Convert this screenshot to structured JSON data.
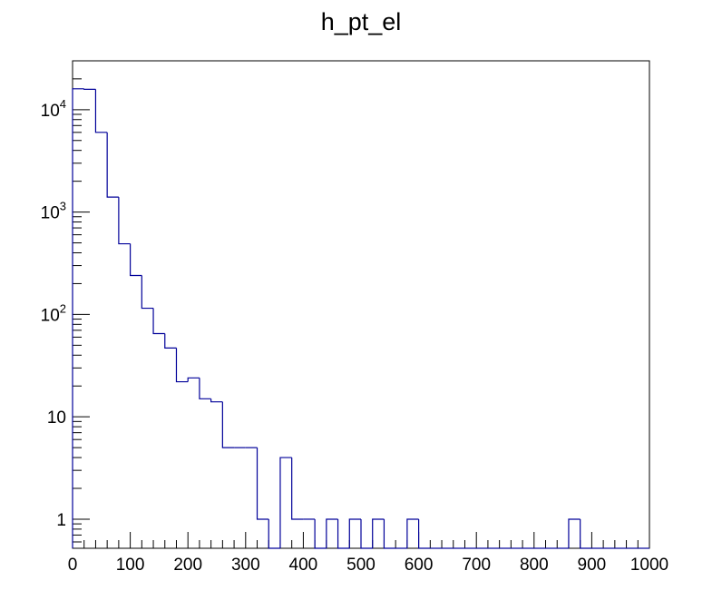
{
  "chart_data": {
    "type": "histogram",
    "title": "h_pt_el",
    "xlabel": "",
    "ylabel": "",
    "xlim": [
      0,
      1000
    ],
    "ylim": [
      0.52,
      30000
    ],
    "yscale": "log",
    "grid": false,
    "line_color": "#000099",
    "bin_edges": [
      0,
      20,
      40,
      60,
      80,
      100,
      120,
      140,
      160,
      180,
      200,
      220,
      240,
      260,
      280,
      300,
      320,
      340,
      360,
      380,
      400,
      420,
      440,
      460,
      480,
      500,
      520,
      540,
      560,
      580,
      600,
      620,
      640,
      660,
      680,
      700,
      720,
      740,
      760,
      780,
      800,
      820,
      840,
      860,
      880,
      900,
      920,
      940,
      960,
      980,
      1000
    ],
    "values": [
      16000,
      15800,
      6000,
      1400,
      490,
      240,
      115,
      65,
      47,
      22,
      24,
      15,
      14,
      5,
      5,
      5,
      1,
      0,
      4,
      1,
      1,
      0,
      1,
      0,
      1,
      0,
      1,
      0,
      0,
      1,
      0,
      0,
      0,
      0,
      0,
      0,
      0,
      0,
      0,
      0,
      0,
      0,
      0,
      1,
      0,
      0,
      0,
      0,
      0,
      0
    ],
    "x_ticks": [
      "0",
      "100",
      "200",
      "300",
      "400",
      "500",
      "600",
      "700",
      "800",
      "900",
      "1000"
    ],
    "y_ticks": [
      {
        "value": 1,
        "base": "1",
        "exp": ""
      },
      {
        "value": 10,
        "base": "10",
        "exp": ""
      },
      {
        "value": 100,
        "base": "10",
        "exp": "2"
      },
      {
        "value": 1000,
        "base": "10",
        "exp": "3"
      },
      {
        "value": 10000,
        "base": "10",
        "exp": "4"
      }
    ]
  }
}
